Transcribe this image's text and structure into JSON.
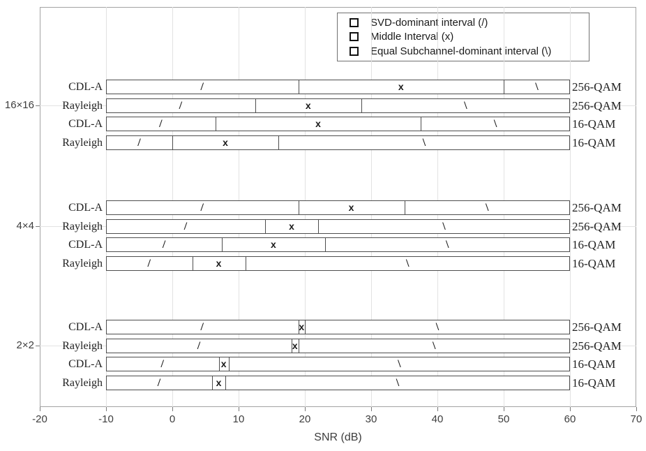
{
  "legend": {
    "items": [
      {
        "label": "SVD-dominant interval (/)"
      },
      {
        "label": "Middle Interval (x)"
      },
      {
        "label": "Equal Subchannel-dominant interval (\\)"
      }
    ]
  },
  "chart_data": {
    "type": "bar",
    "orientation": "horizontal",
    "title": "",
    "xlabel": "SNR (dB)",
    "xlim": [
      -20,
      70
    ],
    "xticks": [
      -20,
      -10,
      0,
      10,
      20,
      30,
      40,
      50,
      60,
      70
    ],
    "grid": true,
    "legend_position": "top-right-inside",
    "legend": [
      "SVD-dominant interval (/)",
      "Middle Interval (x)",
      "Equal Subchannel-dominant interval (\\)"
    ],
    "segment_markers": {
      "svd": "/",
      "middle": "x",
      "equal": "\\"
    },
    "bar_span_db": [
      -10,
      60
    ],
    "groups": [
      {
        "label": "16×16",
        "rows": [
          {
            "channel": "CDL-A",
            "modulation": "256-QAM",
            "svd_to": 19,
            "middle_to": 50
          },
          {
            "channel": "Rayleigh",
            "modulation": "256-QAM",
            "svd_to": 12.5,
            "middle_to": 28.5
          },
          {
            "channel": "CDL-A",
            "modulation": "16-QAM",
            "svd_to": 6.5,
            "middle_to": 37.5
          },
          {
            "channel": "Rayleigh",
            "modulation": "16-QAM",
            "svd_to": 0,
            "middle_to": 16
          }
        ]
      },
      {
        "label": "4×4",
        "rows": [
          {
            "channel": "CDL-A",
            "modulation": "256-QAM",
            "svd_to": 19,
            "middle_to": 35
          },
          {
            "channel": "Rayleigh",
            "modulation": "256-QAM",
            "svd_to": 14,
            "middle_to": 22
          },
          {
            "channel": "CDL-A",
            "modulation": "16-QAM",
            "svd_to": 7.5,
            "middle_to": 23
          },
          {
            "channel": "Rayleigh",
            "modulation": "16-QAM",
            "svd_to": 3,
            "middle_to": 11
          }
        ]
      },
      {
        "label": "2×2",
        "rows": [
          {
            "channel": "CDL-A",
            "modulation": "256-QAM",
            "svd_to": 19,
            "middle_to": 20
          },
          {
            "channel": "Rayleigh",
            "modulation": "256-QAM",
            "svd_to": 18,
            "middle_to": 19
          },
          {
            "channel": "CDL-A",
            "modulation": "16-QAM",
            "svd_to": 7,
            "middle_to": 8.5
          },
          {
            "channel": "Rayleigh",
            "modulation": "16-QAM",
            "svd_to": 6,
            "middle_to": 8
          }
        ]
      }
    ]
  },
  "colors": {
    "bar_fill": "#ffffff",
    "bar_edge": "#4d4d4d",
    "grid": "#e2e2e2",
    "axis_box": "#a3a3a3",
    "tick_text": "#3d3d3d",
    "marker_text": "#1a1a1a"
  }
}
